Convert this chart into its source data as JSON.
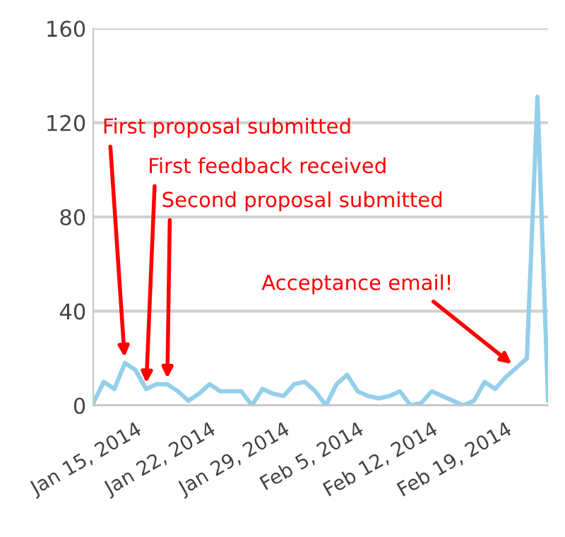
{
  "chart_data": {
    "type": "line",
    "x": [
      "2014-01-11",
      "2014-01-12",
      "2014-01-13",
      "2014-01-14",
      "2014-01-15",
      "2014-01-16",
      "2014-01-17",
      "2014-01-18",
      "2014-01-19",
      "2014-01-20",
      "2014-01-21",
      "2014-01-22",
      "2014-01-23",
      "2014-01-24",
      "2014-01-25",
      "2014-01-26",
      "2014-01-27",
      "2014-01-28",
      "2014-01-29",
      "2014-01-30",
      "2014-01-31",
      "2014-02-01",
      "2014-02-02",
      "2014-02-03",
      "2014-02-04",
      "2014-02-05",
      "2014-02-06",
      "2014-02-07",
      "2014-02-08",
      "2014-02-09",
      "2014-02-10",
      "2014-02-11",
      "2014-02-12",
      "2014-02-13",
      "2014-02-14",
      "2014-02-15",
      "2014-02-16",
      "2014-02-17",
      "2014-02-18",
      "2014-02-19",
      "2014-02-20",
      "2014-02-21",
      "2014-02-22",
      "2014-02-23"
    ],
    "series": [
      {
        "color": "#94cfea",
        "values": [
          1,
          10,
          7,
          18,
          15,
          7,
          9,
          9,
          6,
          2,
          5,
          9,
          6,
          6,
          6,
          0,
          7,
          5,
          4,
          9,
          10,
          6,
          0,
          9,
          13,
          6,
          4,
          3,
          4,
          6,
          0,
          1,
          6,
          4,
          2,
          0,
          2,
          10,
          7,
          12,
          16,
          20,
          131,
          2
        ]
      }
    ],
    "xlim": [
      "2014-01-11",
      "2014-02-23"
    ],
    "xticks": [
      {
        "value": "2014-01-15",
        "label": "Jan 15, 2014"
      },
      {
        "value": "2014-01-22",
        "label": "Jan 22, 2014"
      },
      {
        "value": "2014-01-29",
        "label": "Jan 29, 2014"
      },
      {
        "value": "2014-02-05",
        "label": "Feb 5, 2014"
      },
      {
        "value": "2014-02-12",
        "label": "Feb 12, 2014"
      },
      {
        "value": "2014-02-19",
        "label": "Feb 19, 2014"
      }
    ],
    "ylim": [
      0,
      160
    ],
    "yticks": [
      0,
      40,
      80,
      120,
      160
    ],
    "grid": "y",
    "marker": "none",
    "line_style": "solid",
    "annotations": [
      {
        "text": "First proposal submitted",
        "x": "2014-01-14",
        "y": 18
      },
      {
        "text": "First feedback received",
        "x": "2014-01-16",
        "y": 7
      },
      {
        "text": "Second proposal submitted",
        "x": "2014-01-18",
        "y": 9
      },
      {
        "text": "Acceptance email!",
        "x": "2014-02-20",
        "y": 16
      }
    ]
  }
}
